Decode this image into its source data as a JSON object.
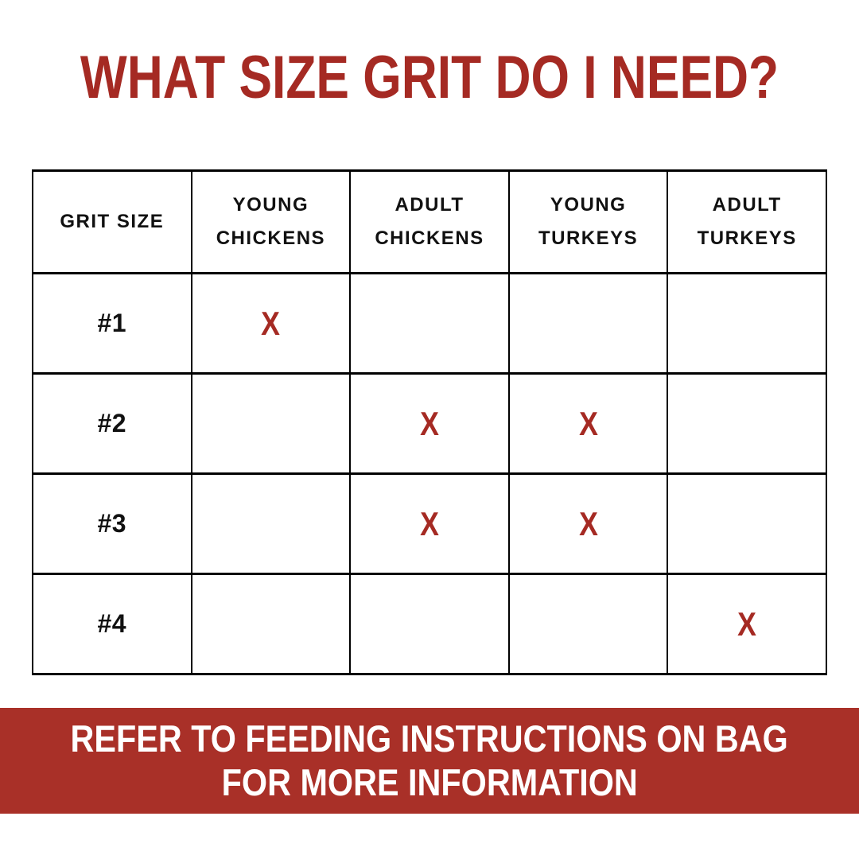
{
  "title": "WHAT SIZE GRIT DO I NEED?",
  "colors": {
    "accent_red": "#A52A23",
    "banner_red": "#A93028",
    "text_black": "#111111",
    "background": "#FFFFFF"
  },
  "table": {
    "mark_symbol": "X",
    "columns": [
      "GRIT SIZE",
      "YOUNG CHICKENS",
      "ADULT CHICKENS",
      "YOUNG TURKEYS",
      "ADULT TURKEYS"
    ],
    "rows": [
      {
        "label": "#1",
        "marks": [
          true,
          false,
          false,
          false
        ]
      },
      {
        "label": "#2",
        "marks": [
          false,
          true,
          true,
          false
        ]
      },
      {
        "label": "#3",
        "marks": [
          false,
          true,
          true,
          false
        ]
      },
      {
        "label": "#4",
        "marks": [
          false,
          false,
          false,
          true
        ]
      }
    ]
  },
  "footer": {
    "line1": "REFER TO FEEDING INSTRUCTIONS ON BAG",
    "line2": "FOR MORE INFORMATION"
  }
}
